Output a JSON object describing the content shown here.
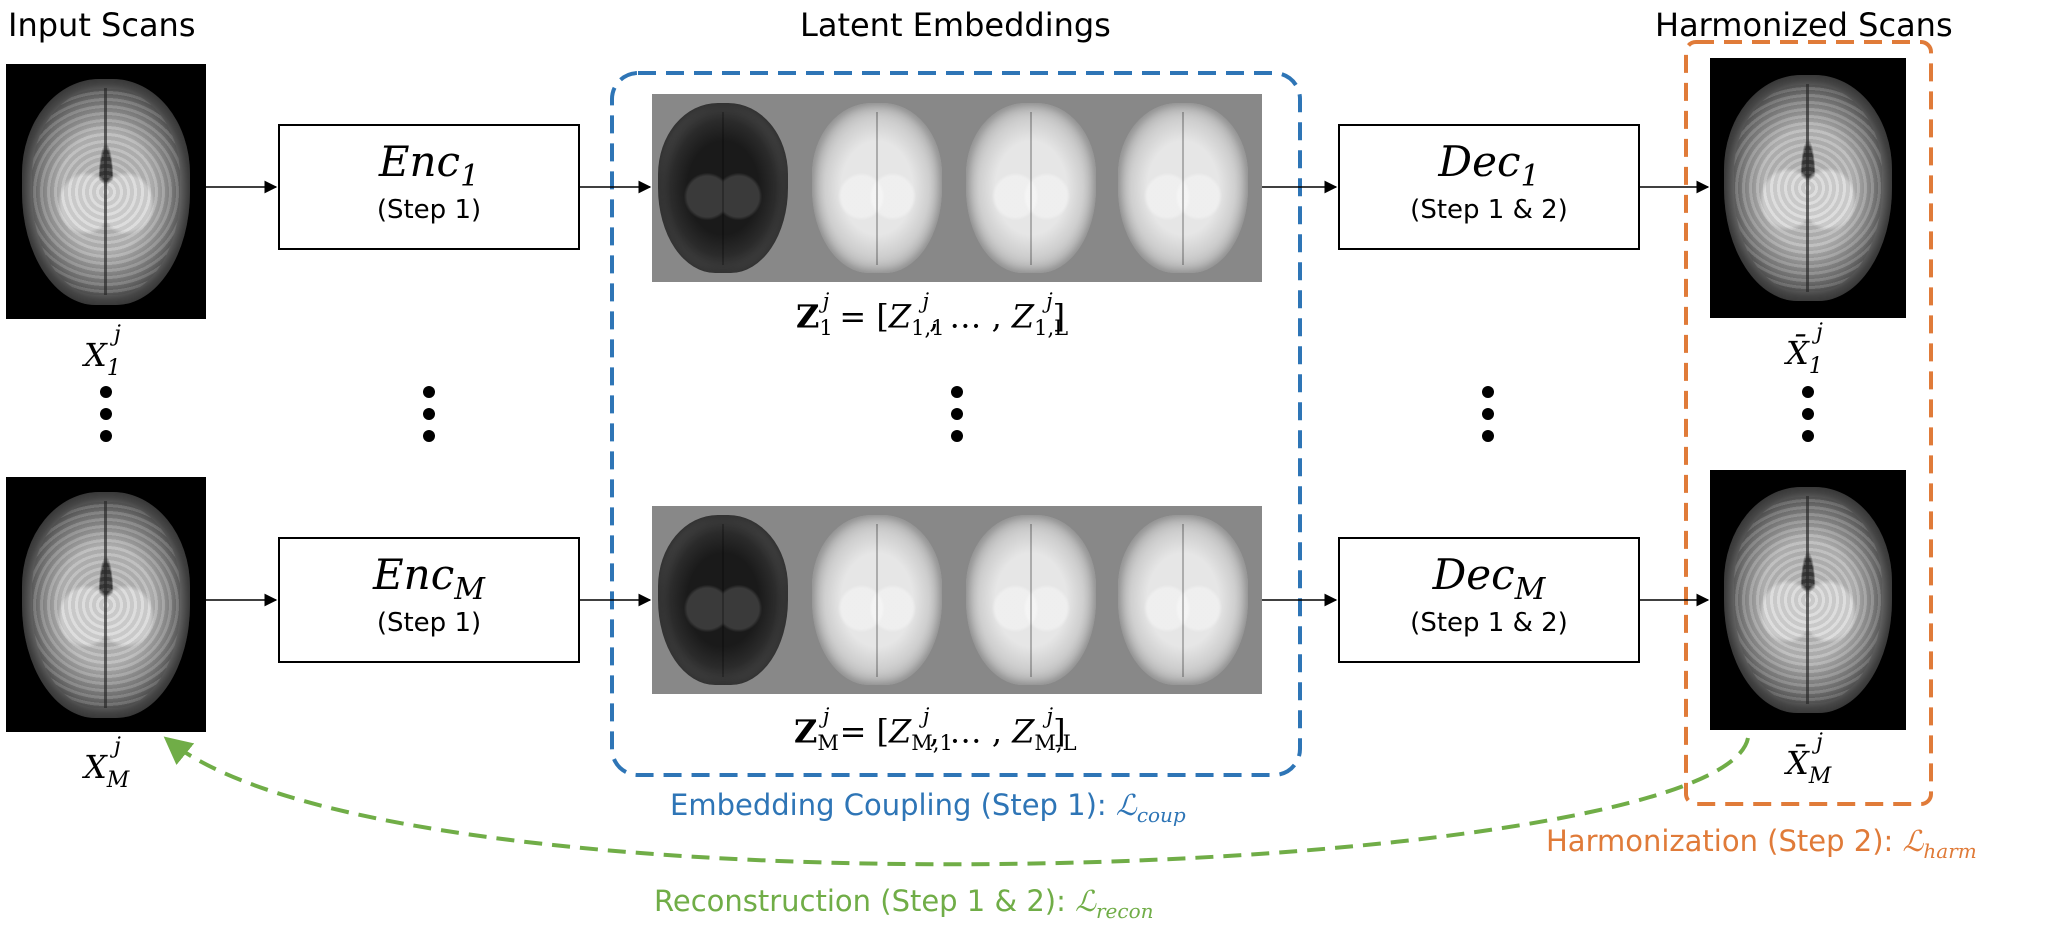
{
  "titles": {
    "input": "Input Scans",
    "latent": "Latent Embeddings",
    "harmonized": "Harmonized Scans"
  },
  "input_labels": [
    {
      "base": "X",
      "sub": "1",
      "sup": "j"
    },
    {
      "base": "X",
      "sub": "M",
      "sup": "j"
    }
  ],
  "output_labels": [
    {
      "base": "X̄",
      "sub": "1",
      "sup": "j"
    },
    {
      "base": "X̄",
      "sub": "M",
      "sup": "j"
    }
  ],
  "encoders": [
    {
      "name": "Enc",
      "sub": "1",
      "step": "(Step 1)"
    },
    {
      "name": "Enc",
      "sub": "M",
      "step": "(Step 1)"
    }
  ],
  "decoders": [
    {
      "name": "Dec",
      "sub": "1",
      "step": "(Step 1 & 2)"
    },
    {
      "name": "Dec",
      "sub": "M",
      "step": "(Step 1 & 2)"
    }
  ],
  "embeddings": [
    {
      "lhs": "Z",
      "lhs_sub": "1",
      "lhs_sup": "j",
      "first": "Z",
      "first_sub": "1,1",
      "first_sup": "j",
      "ellipsis": "…",
      "last": "Z",
      "last_sub": "1,L",
      "last_sup": "j"
    },
    {
      "lhs": "Z",
      "lhs_sub": "M",
      "lhs_sup": "j",
      "first": "Z",
      "first_sub": "M,1",
      "first_sup": "j",
      "ellipsis": "…",
      "last": "Z",
      "last_sub": "M,L",
      "last_sup": "j"
    }
  ],
  "captions": {
    "coupling": {
      "text": "Embedding Coupling (Step 1): ",
      "loss": "ℒ",
      "loss_sub": "coup"
    },
    "harmonization": {
      "text": "Harmonization (Step 2): ",
      "loss": "ℒ",
      "loss_sub": "harm"
    },
    "reconstruction": {
      "text": "Reconstruction (Step 1 & 2): ",
      "loss": "ℒ",
      "loss_sub": "recon"
    }
  },
  "colors": {
    "coupling": "#2e75b6",
    "harmonization": "#e07b39",
    "reconstruction": "#70ad47",
    "arrow": "#000000"
  }
}
